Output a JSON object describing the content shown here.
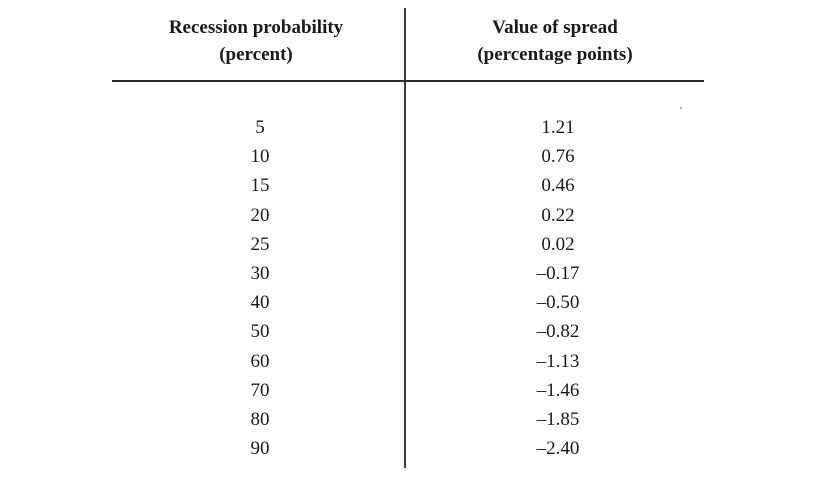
{
  "table": {
    "columns": [
      {
        "line1": "Recession probability",
        "line2": "(percent)"
      },
      {
        "line1": "Value of spread",
        "line2": "(percentage points)"
      }
    ],
    "rows": [
      {
        "probability": "5",
        "spread": "1.21"
      },
      {
        "probability": "10",
        "spread": "0.76"
      },
      {
        "probability": "15",
        "spread": "0.46"
      },
      {
        "probability": "20",
        "spread": "0.22"
      },
      {
        "probability": "25",
        "spread": "0.02"
      },
      {
        "probability": "30",
        "spread": "–0.17"
      },
      {
        "probability": "40",
        "spread": "–0.50"
      },
      {
        "probability": "50",
        "spread": "–0.82"
      },
      {
        "probability": "60",
        "spread": "–1.13"
      },
      {
        "probability": "70",
        "spread": "–1.46"
      },
      {
        "probability": "80",
        "spread": "–1.85"
      },
      {
        "probability": "90",
        "spread": "–2.40"
      }
    ]
  }
}
